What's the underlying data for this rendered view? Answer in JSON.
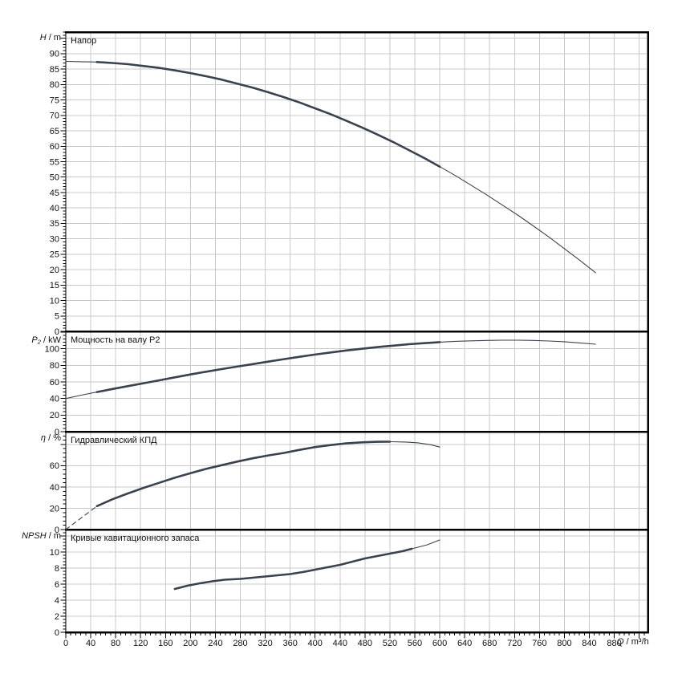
{
  "colors": {
    "curve": "#39424e",
    "grid": "#c9c9c9",
    "axis": "#000000",
    "text": "#111111",
    "background": "#ffffff"
  },
  "chart_data": {
    "type": "line",
    "x_axis": {
      "label_var": "Q",
      "label_unit": "/ m³/h",
      "xlim": [
        0,
        934
      ],
      "major_step": 40,
      "minor_step": 8,
      "tick_labels": [
        "0",
        "40",
        "80",
        "120",
        "160",
        "200",
        "240",
        "280",
        "320",
        "360",
        "400",
        "440",
        "480",
        "520",
        "560",
        "600",
        "640",
        "680",
        "720",
        "760",
        "800",
        "840",
        "880"
      ]
    },
    "panels": [
      {
        "id": "head",
        "title": "Напор",
        "ylabel_var": "H",
        "ylabel_unit": "/ m",
        "ylim": [
          0,
          97
        ],
        "ytick_major": 5,
        "ytick_minor": 1,
        "ytick_labels": [
          "0",
          "5",
          "10",
          "15",
          "20",
          "25",
          "30",
          "35",
          "40",
          "45",
          "50",
          "55",
          "60",
          "65",
          "70",
          "75",
          "80",
          "85",
          "90"
        ],
        "series": [
          {
            "name": "head-curve",
            "segments": [
              {
                "style": "thin",
                "points": [
                  [
                    0,
                    87.5
                  ],
                  [
                    25,
                    87.4
                  ],
                  [
                    50,
                    87.3
                  ]
                ]
              },
              {
                "style": "thick",
                "points": [
                  [
                    50,
                    87.3
                  ],
                  [
                    75,
                    87.0
                  ],
                  [
                    100,
                    86.6
                  ],
                  [
                    125,
                    86.0
                  ],
                  [
                    150,
                    85.4
                  ],
                  [
                    175,
                    84.6
                  ],
                  [
                    200,
                    83.7
                  ],
                  [
                    225,
                    82.7
                  ],
                  [
                    250,
                    81.6
                  ],
                  [
                    275,
                    80.3
                  ],
                  [
                    300,
                    79.0
                  ],
                  [
                    325,
                    77.5
                  ],
                  [
                    350,
                    75.9
                  ],
                  [
                    375,
                    74.2
                  ],
                  [
                    400,
                    72.3
                  ],
                  [
                    425,
                    70.4
                  ],
                  [
                    450,
                    68.3
                  ],
                  [
                    475,
                    66.1
                  ],
                  [
                    500,
                    63.8
                  ],
                  [
                    525,
                    61.4
                  ],
                  [
                    550,
                    58.8
                  ],
                  [
                    575,
                    56.2
                  ],
                  [
                    600,
                    53.4
                  ]
                ]
              },
              {
                "style": "thin",
                "points": [
                  [
                    600,
                    53.4
                  ],
                  [
                    625,
                    50.5
                  ],
                  [
                    650,
                    47.4
                  ],
                  [
                    675,
                    44.3
                  ],
                  [
                    700,
                    41.0
                  ],
                  [
                    725,
                    37.7
                  ],
                  [
                    750,
                    34.2
                  ],
                  [
                    775,
                    30.6
                  ],
                  [
                    800,
                    26.8
                  ],
                  [
                    825,
                    23.0
                  ],
                  [
                    850,
                    19.0
                  ]
                ]
              }
            ]
          }
        ]
      },
      {
        "id": "p2",
        "title": "Мощность на валу P2",
        "ylabel_var": "P₂",
        "ylabel_unit": "/ kW",
        "ylim": [
          0,
          121
        ],
        "ytick_major": 20,
        "ytick_minor": 4,
        "ytick_labels": [
          "0",
          "20",
          "40",
          "60",
          "80",
          "100"
        ],
        "series": [
          {
            "name": "p2-curve",
            "segments": [
              {
                "style": "thin",
                "points": [
                  [
                    0,
                    40
                  ],
                  [
                    25,
                    44
                  ],
                  [
                    50,
                    47.8
                  ]
                ]
              },
              {
                "style": "thick",
                "points": [
                  [
                    50,
                    47.8
                  ],
                  [
                    75,
                    51.5
                  ],
                  [
                    100,
                    55
                  ],
                  [
                    125,
                    58.5
                  ],
                  [
                    150,
                    62
                  ],
                  [
                    175,
                    65.5
                  ],
                  [
                    200,
                    69
                  ],
                  [
                    225,
                    72.3
                  ],
                  [
                    250,
                    75.5
                  ],
                  [
                    275,
                    78.5
                  ],
                  [
                    300,
                    81.5
                  ],
                  [
                    325,
                    84.5
                  ],
                  [
                    350,
                    87.5
                  ],
                  [
                    375,
                    90.3
                  ],
                  [
                    400,
                    93
                  ],
                  [
                    425,
                    95.5
                  ],
                  [
                    450,
                    98
                  ],
                  [
                    475,
                    100
                  ],
                  [
                    500,
                    102
                  ],
                  [
                    525,
                    103.8
                  ],
                  [
                    550,
                    105.5
                  ],
                  [
                    575,
                    106.8
                  ],
                  [
                    600,
                    108
                  ]
                ]
              },
              {
                "style": "thin",
                "points": [
                  [
                    600,
                    108
                  ],
                  [
                    625,
                    109
                  ],
                  [
                    650,
                    109.6
                  ],
                  [
                    675,
                    110.1
                  ],
                  [
                    700,
                    110.4
                  ],
                  [
                    725,
                    110.4
                  ],
                  [
                    750,
                    110.1
                  ],
                  [
                    775,
                    109.4
                  ],
                  [
                    800,
                    108.5
                  ],
                  [
                    825,
                    107.1
                  ],
                  [
                    850,
                    105.5
                  ]
                ]
              }
            ]
          }
        ]
      },
      {
        "id": "eta",
        "title": "Гидравлический КПД",
        "ylabel_var": "η",
        "ylabel_unit": "/ %",
        "ylim": [
          0,
          92
        ],
        "ytick_major": 20,
        "ytick_minor": 4,
        "ytick_labels": [
          "0",
          "20",
          "40",
          "60"
        ],
        "series": [
          {
            "name": "eta-curve",
            "segments": [
              {
                "style": "dashed",
                "points": [
                  [
                    0,
                    0
                  ],
                  [
                    25,
                    11
                  ],
                  [
                    50,
                    22
                  ]
                ]
              },
              {
                "style": "thick",
                "points": [
                  [
                    50,
                    22
                  ],
                  [
                    75,
                    28.5
                  ],
                  [
                    100,
                    34
                  ],
                  [
                    125,
                    39.2
                  ],
                  [
                    150,
                    44
                  ],
                  [
                    175,
                    48.7
                  ],
                  [
                    200,
                    53
                  ],
                  [
                    225,
                    57
                  ],
                  [
                    250,
                    60.5
                  ],
                  [
                    275,
                    63.9
                  ],
                  [
                    300,
                    67
                  ],
                  [
                    325,
                    69.7
                  ],
                  [
                    350,
                    72
                  ],
                  [
                    375,
                    74.9
                  ],
                  [
                    400,
                    77.5
                  ],
                  [
                    425,
                    79.4
                  ],
                  [
                    450,
                    81
                  ],
                  [
                    475,
                    82
                  ],
                  [
                    500,
                    82.5
                  ],
                  [
                    520,
                    82.6
                  ]
                ]
              },
              {
                "style": "thin",
                "points": [
                  [
                    520,
                    82.6
                  ],
                  [
                    545,
                    82.3
                  ],
                  [
                    565,
                    81.5
                  ],
                  [
                    585,
                    79.8
                  ],
                  [
                    600,
                    77.5
                  ]
                ]
              }
            ]
          }
        ]
      },
      {
        "id": "npsh",
        "title": "Кривые кавитационного запаса",
        "ylabel_var": "NPSH",
        "ylabel_unit": "/ m",
        "ylim": [
          0,
          12.8
        ],
        "ytick_major": 2,
        "ytick_minor": 0.4,
        "ytick_labels": [
          "0",
          "2",
          "4",
          "6",
          "8",
          "10"
        ],
        "series": [
          {
            "name": "npsh-curve",
            "segments": [
              {
                "style": "thick",
                "points": [
                  [
                    175,
                    5.4
                  ],
                  [
                    195,
                    5.8
                  ],
                  [
                    215,
                    6.1
                  ],
                  [
                    235,
                    6.35
                  ],
                  [
                    255,
                    6.55
                  ],
                  [
                    280,
                    6.65
                  ],
                  [
                    300,
                    6.8
                  ],
                  [
                    320,
                    6.95
                  ],
                  [
                    340,
                    7.1
                  ],
                  [
                    360,
                    7.25
                  ],
                  [
                    380,
                    7.5
                  ],
                  [
                    400,
                    7.8
                  ],
                  [
                    420,
                    8.1
                  ],
                  [
                    440,
                    8.4
                  ],
                  [
                    460,
                    8.8
                  ],
                  [
                    480,
                    9.2
                  ],
                  [
                    500,
                    9.5
                  ],
                  [
                    520,
                    9.8
                  ],
                  [
                    540,
                    10.1
                  ],
                  [
                    555,
                    10.4
                  ]
                ]
              },
              {
                "style": "thin",
                "points": [
                  [
                    555,
                    10.4
                  ],
                  [
                    580,
                    10.9
                  ],
                  [
                    600,
                    11.5
                  ]
                ]
              }
            ]
          }
        ]
      }
    ]
  }
}
